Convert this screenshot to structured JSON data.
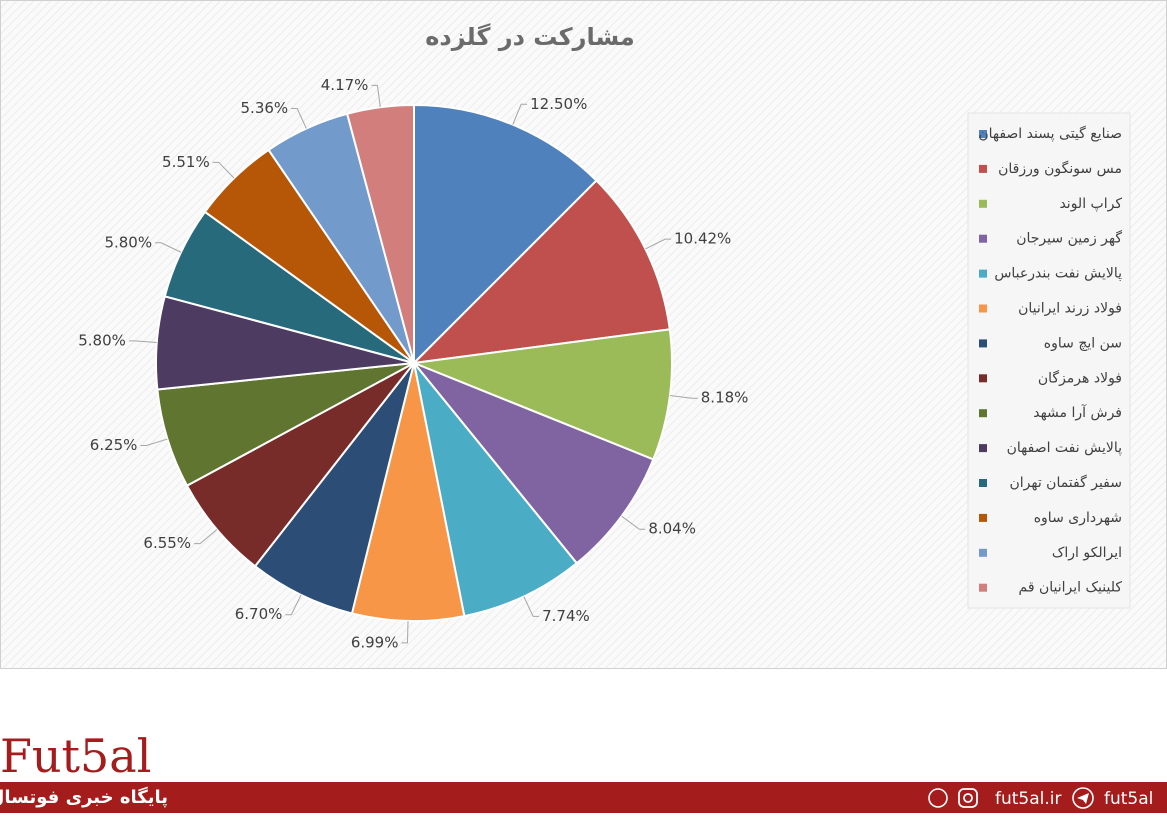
{
  "chart_data": {
    "type": "pie",
    "title": "مشارکت در گلزده",
    "categories": [
      "صنایع گیتی پسند اصفهان",
      "مس سونگون ورزقان",
      "کراپ الوند",
      "گهر زمین سیرجان",
      "پالایش نفت بندرعباس",
      "فولاد زرند ایرانیان",
      "سن ایچ ساوه",
      "فولاد هرمزگان",
      "فرش آرا مشهد",
      "پالایش نفت اصفهان",
      "سفیر گفتمان تهران",
      "شهرداری ساوه",
      "ایرالکو اراک",
      "کلینیک ایرانیان قم"
    ],
    "values": [
      12.5,
      10.42,
      8.18,
      8.04,
      7.74,
      6.99,
      6.7,
      6.55,
      6.25,
      5.8,
      5.8,
      5.51,
      5.36,
      4.17
    ],
    "value_labels": [
      "12.50%",
      "10.42%",
      "8.18%",
      "8.04%",
      "7.74%",
      "6.99%",
      "6.70%",
      "6.55%",
      "6.25%",
      "5.80%",
      "5.80%",
      "5.51%",
      "5.36%",
      "4.17%"
    ],
    "colors": [
      "#4f81bd",
      "#c0504d",
      "#9bbb59",
      "#8064a2",
      "#4bacc6",
      "#f79646",
      "#2c4d75",
      "#772c2a",
      "#5f7530",
      "#4d3b62",
      "#276a7c",
      "#b65708",
      "#729aca",
      "#d17e7c"
    ],
    "legend": "right"
  },
  "footer": {
    "logo": "Fut5al",
    "tagline": "پایگاه خبری فوتسال",
    "site": "fut5al.ir",
    "handle": "fut5al"
  }
}
